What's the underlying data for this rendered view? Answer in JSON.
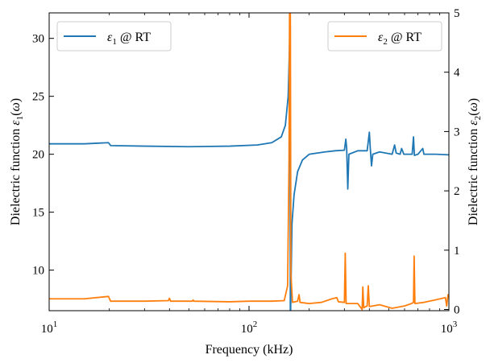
{
  "chart_data": {
    "type": "line",
    "xlabel": "Frequency (kHz)",
    "xscale": "log",
    "xlim": [
      10,
      1000
    ],
    "x_ticks": [
      {
        "base": "10",
        "exp": "1"
      },
      {
        "base": "10",
        "exp": "2"
      },
      {
        "base": "10",
        "exp": "3"
      }
    ],
    "y_left": {
      "label": "Dielectric function ε1(ω)",
      "ylim": [
        6.5,
        32.2
      ],
      "ticks": [
        10,
        15,
        20,
        25,
        30
      ]
    },
    "y_right": {
      "label": "Dielectric function ε2(ω)",
      "ylim": [
        -0.02,
        5
      ],
      "ticks": [
        0,
        1,
        2,
        3,
        4,
        5
      ]
    },
    "legend_left": {
      "position": "top-left",
      "symbol": "ε",
      "sub": "1",
      "text": " @ RT"
    },
    "legend_right": {
      "position": "top-right",
      "symbol": "ε",
      "sub": "2",
      "text": " @ RT"
    },
    "series": [
      {
        "name": "ε1 @ RT",
        "axis": "left",
        "color": "#1f77b4",
        "points": [
          [
            10,
            20.9
          ],
          [
            15,
            20.9
          ],
          [
            19.8,
            21.0
          ],
          [
            20.3,
            20.75
          ],
          [
            30,
            20.7
          ],
          [
            50,
            20.65
          ],
          [
            80,
            20.7
          ],
          [
            110,
            20.8
          ],
          [
            130,
            21.0
          ],
          [
            145,
            21.5
          ],
          [
            152,
            22.5
          ],
          [
            157,
            25.0
          ],
          [
            159,
            28.5
          ],
          [
            160,
            30.5
          ],
          [
            160.6,
            32.2
          ],
          [
            160.9,
            6.5
          ],
          [
            161.5,
            6.5
          ],
          [
            164,
            14.0
          ],
          [
            168,
            16.5
          ],
          [
            175,
            18.5
          ],
          [
            185,
            19.5
          ],
          [
            200,
            20.0
          ],
          [
            240,
            20.2
          ],
          [
            270,
            20.3
          ],
          [
            300,
            20.35
          ],
          [
            305,
            21.3
          ],
          [
            308,
            20.5
          ],
          [
            312,
            17.0
          ],
          [
            316,
            20.0
          ],
          [
            350,
            20.3
          ],
          [
            390,
            20.3
          ],
          [
            400,
            21.9
          ],
          [
            404,
            20.6
          ],
          [
            410,
            19.0
          ],
          [
            416,
            20.0
          ],
          [
            450,
            20.2
          ],
          [
            520,
            20.0
          ],
          [
            535,
            20.8
          ],
          [
            545,
            20.1
          ],
          [
            570,
            20.0
          ],
          [
            580,
            20.5
          ],
          [
            595,
            20.0
          ],
          [
            655,
            20.0
          ],
          [
            665,
            21.5
          ],
          [
            672,
            19.9
          ],
          [
            700,
            20.0
          ],
          [
            740,
            20.5
          ],
          [
            750,
            20.0
          ],
          [
            860,
            20.0
          ],
          [
            1000,
            19.95
          ]
        ]
      },
      {
        "name": "ε2 @ RT",
        "axis": "right",
        "color": "#ff7f0e",
        "points": [
          [
            10,
            0.18
          ],
          [
            15,
            0.18
          ],
          [
            19.8,
            0.22
          ],
          [
            20.3,
            0.14
          ],
          [
            30,
            0.14
          ],
          [
            39.5,
            0.15
          ],
          [
            40,
            0.19
          ],
          [
            40.5,
            0.14
          ],
          [
            52,
            0.14
          ],
          [
            52.5,
            0.16
          ],
          [
            53,
            0.14
          ],
          [
            80,
            0.13
          ],
          [
            100,
            0.14
          ],
          [
            130,
            0.14
          ],
          [
            150,
            0.15
          ],
          [
            156,
            0.4
          ],
          [
            158.5,
            2.5
          ],
          [
            159.5,
            5.0
          ],
          [
            161,
            5.0
          ],
          [
            162,
            0.6
          ],
          [
            165,
            0.12
          ],
          [
            175,
            0.14
          ],
          [
            178,
            0.25
          ],
          [
            180,
            0.12
          ],
          [
            200,
            0.1
          ],
          [
            230,
            0.12
          ],
          [
            260,
            0.18
          ],
          [
            275,
            0.2
          ],
          [
            280,
            0.13
          ],
          [
            300,
            0.12
          ],
          [
            303,
            0.95
          ],
          [
            306,
            0.1
          ],
          [
            350,
            0.1
          ],
          [
            368,
            0.0
          ],
          [
            371,
            0.38
          ],
          [
            375,
            0.03
          ],
          [
            390,
            0.06
          ],
          [
            395,
            0.4
          ],
          [
            400,
            0.05
          ],
          [
            450,
            0.08
          ],
          [
            520,
            0.02
          ],
          [
            600,
            0.06
          ],
          [
            650,
            0.1
          ],
          [
            665,
            0.12
          ],
          [
            670,
            0.9
          ],
          [
            676,
            0.1
          ],
          [
            750,
            0.12
          ],
          [
            850,
            0.16
          ],
          [
            960,
            0.2
          ],
          [
            975,
            0.06
          ],
          [
            990,
            0.25
          ],
          [
            1000,
            0.24
          ]
        ]
      }
    ]
  }
}
